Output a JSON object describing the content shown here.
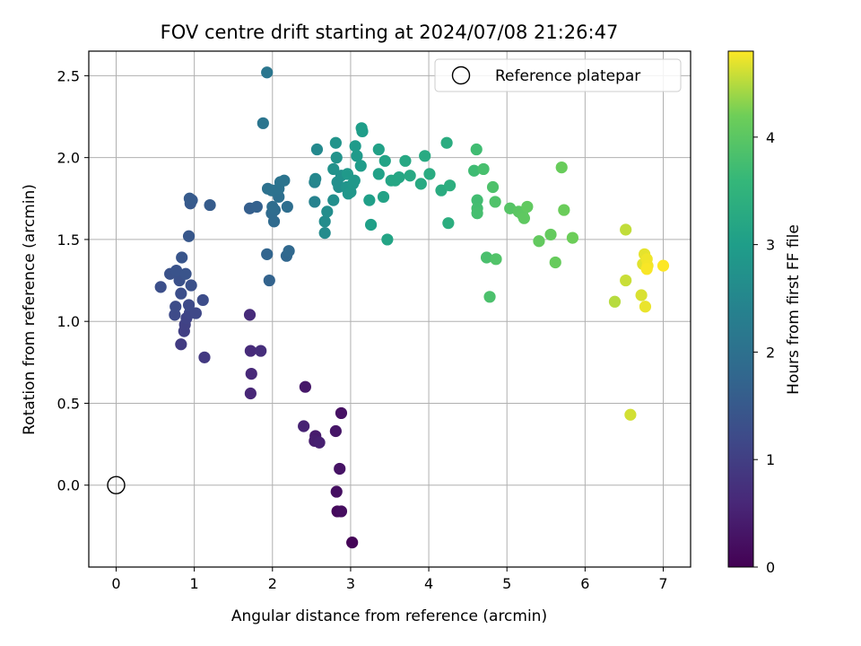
{
  "chart_data": {
    "type": "scatter",
    "title": "FOV centre drift starting at 2024/07/08 21:26:47",
    "xlabel": "Angular distance from reference (arcmin)",
    "ylabel": "Rotation from reference (arcmin)",
    "xlim": [
      -0.35,
      7.35
    ],
    "ylim": [
      -0.5,
      2.65
    ],
    "xticks": [
      0,
      1,
      2,
      3,
      4,
      5,
      6,
      7
    ],
    "xtick_labels": [
      "0",
      "1",
      "2",
      "3",
      "4",
      "5",
      "6",
      "7"
    ],
    "yticks": [
      0.0,
      0.5,
      1.0,
      1.5,
      2.0,
      2.5
    ],
    "ytick_labels": [
      "0.0",
      "0.5",
      "1.0",
      "1.5",
      "2.0",
      "2.5"
    ],
    "grid": true,
    "colormap": "viridis",
    "colorbar": {
      "label": "Hours from first FF file",
      "range": [
        0,
        4.8
      ],
      "ticks": [
        0,
        1,
        2,
        3,
        4
      ],
      "tick_labels": [
        "0",
        "1",
        "2",
        "3",
        "4"
      ]
    },
    "legend": {
      "placement": "top-right",
      "entries": [
        "Reference platepar"
      ]
    },
    "reference_point": {
      "x": 0,
      "y": 0
    },
    "points": [
      {
        "x": 3.02,
        "y": -0.35,
        "t": 0.05
      },
      {
        "x": 2.83,
        "y": -0.16,
        "t": 0.12
      },
      {
        "x": 2.88,
        "y": -0.16,
        "t": 0.18
      },
      {
        "x": 2.82,
        "y": -0.04,
        "t": 0.22
      },
      {
        "x": 2.86,
        "y": 0.1,
        "t": 0.28
      },
      {
        "x": 2.81,
        "y": 0.33,
        "t": 0.32
      },
      {
        "x": 2.88,
        "y": 0.44,
        "t": 0.25
      },
      {
        "x": 2.42,
        "y": 0.6,
        "t": 0.35
      },
      {
        "x": 2.55,
        "y": 0.3,
        "t": 0.4
      },
      {
        "x": 2.54,
        "y": 0.27,
        "t": 0.44
      },
      {
        "x": 2.6,
        "y": 0.26,
        "t": 0.48
      },
      {
        "x": 2.4,
        "y": 0.36,
        "t": 0.52
      },
      {
        "x": 1.72,
        "y": 0.56,
        "t": 0.58
      },
      {
        "x": 1.73,
        "y": 0.68,
        "t": 0.62
      },
      {
        "x": 1.72,
        "y": 0.82,
        "t": 0.66
      },
      {
        "x": 1.85,
        "y": 0.82,
        "t": 0.7
      },
      {
        "x": 1.71,
        "y": 1.04,
        "t": 0.66
      },
      {
        "x": 1.13,
        "y": 0.78,
        "t": 0.9
      },
      {
        "x": 0.83,
        "y": 0.86,
        "t": 0.95
      },
      {
        "x": 0.87,
        "y": 0.94,
        "t": 1.0
      },
      {
        "x": 0.88,
        "y": 0.98,
        "t": 1.04
      },
      {
        "x": 0.9,
        "y": 1.02,
        "t": 1.08
      },
      {
        "x": 0.94,
        "y": 1.05,
        "t": 1.12
      },
      {
        "x": 1.02,
        "y": 1.05,
        "t": 1.16
      },
      {
        "x": 0.93,
        "y": 1.1,
        "t": 1.2
      },
      {
        "x": 0.75,
        "y": 1.04,
        "t": 1.22
      },
      {
        "x": 0.76,
        "y": 1.09,
        "t": 1.24
      },
      {
        "x": 1.11,
        "y": 1.13,
        "t": 1.26
      },
      {
        "x": 0.83,
        "y": 1.17,
        "t": 1.28
      },
      {
        "x": 0.57,
        "y": 1.21,
        "t": 1.3
      },
      {
        "x": 0.96,
        "y": 1.22,
        "t": 1.32
      },
      {
        "x": 0.81,
        "y": 1.25,
        "t": 1.34
      },
      {
        "x": 0.69,
        "y": 1.29,
        "t": 1.36
      },
      {
        "x": 0.77,
        "y": 1.31,
        "t": 1.38
      },
      {
        "x": 0.89,
        "y": 1.29,
        "t": 1.4
      },
      {
        "x": 0.84,
        "y": 1.39,
        "t": 1.42
      },
      {
        "x": 0.93,
        "y": 1.52,
        "t": 1.46
      },
      {
        "x": 0.95,
        "y": 1.72,
        "t": 1.5
      },
      {
        "x": 0.97,
        "y": 1.74,
        "t": 1.52
      },
      {
        "x": 0.94,
        "y": 1.75,
        "t": 1.54
      },
      {
        "x": 1.2,
        "y": 1.71,
        "t": 1.56
      },
      {
        "x": 1.71,
        "y": 1.69,
        "t": 1.62
      },
      {
        "x": 1.8,
        "y": 1.7,
        "t": 1.66
      },
      {
        "x": 1.96,
        "y": 1.25,
        "t": 1.7
      },
      {
        "x": 1.93,
        "y": 1.41,
        "t": 1.74
      },
      {
        "x": 2.18,
        "y": 1.4,
        "t": 1.78
      },
      {
        "x": 2.21,
        "y": 1.43,
        "t": 1.82
      },
      {
        "x": 2.02,
        "y": 1.61,
        "t": 1.86
      },
      {
        "x": 1.99,
        "y": 1.66,
        "t": 1.88
      },
      {
        "x": 2.03,
        "y": 1.68,
        "t": 1.9
      },
      {
        "x": 2.0,
        "y": 1.7,
        "t": 1.92
      },
      {
        "x": 2.19,
        "y": 1.7,
        "t": 1.94
      },
      {
        "x": 2.08,
        "y": 1.76,
        "t": 1.96
      },
      {
        "x": 2.05,
        "y": 1.79,
        "t": 1.98
      },
      {
        "x": 1.94,
        "y": 1.81,
        "t": 2.0
      },
      {
        "x": 1.99,
        "y": 1.8,
        "t": 2.02
      },
      {
        "x": 2.08,
        "y": 1.81,
        "t": 2.04
      },
      {
        "x": 2.1,
        "y": 1.85,
        "t": 2.06
      },
      {
        "x": 2.15,
        "y": 1.86,
        "t": 2.08
      },
      {
        "x": 1.88,
        "y": 2.21,
        "t": 2.1
      },
      {
        "x": 1.93,
        "y": 2.52,
        "t": 2.12
      },
      {
        "x": 2.54,
        "y": 1.73,
        "t": 2.4
      },
      {
        "x": 2.54,
        "y": 1.85,
        "t": 2.45
      },
      {
        "x": 2.55,
        "y": 1.87,
        "t": 2.5
      },
      {
        "x": 2.57,
        "y": 2.05,
        "t": 2.55
      },
      {
        "x": 2.67,
        "y": 1.54,
        "t": 2.6
      },
      {
        "x": 2.67,
        "y": 1.61,
        "t": 2.62
      },
      {
        "x": 2.7,
        "y": 1.67,
        "t": 2.64
      },
      {
        "x": 2.78,
        "y": 1.74,
        "t": 2.66
      },
      {
        "x": 2.85,
        "y": 1.82,
        "t": 2.68
      },
      {
        "x": 2.83,
        "y": 1.85,
        "t": 2.7
      },
      {
        "x": 2.88,
        "y": 1.89,
        "t": 2.72
      },
      {
        "x": 2.78,
        "y": 1.93,
        "t": 2.74
      },
      {
        "x": 2.82,
        "y": 2.0,
        "t": 2.76
      },
      {
        "x": 2.81,
        "y": 2.09,
        "t": 2.78
      },
      {
        "x": 2.95,
        "y": 1.82,
        "t": 2.8
      },
      {
        "x": 2.97,
        "y": 1.78,
        "t": 2.82
      },
      {
        "x": 3.0,
        "y": 1.79,
        "t": 2.84
      },
      {
        "x": 3.03,
        "y": 1.84,
        "t": 2.86
      },
      {
        "x": 3.05,
        "y": 1.86,
        "t": 2.88
      },
      {
        "x": 2.96,
        "y": 1.9,
        "t": 2.9
      },
      {
        "x": 3.08,
        "y": 2.01,
        "t": 2.92
      },
      {
        "x": 3.06,
        "y": 2.07,
        "t": 2.94
      },
      {
        "x": 3.13,
        "y": 1.95,
        "t": 2.96
      },
      {
        "x": 3.15,
        "y": 2.16,
        "t": 2.98
      },
      {
        "x": 3.14,
        "y": 2.18,
        "t": 3.0
      },
      {
        "x": 3.24,
        "y": 1.74,
        "t": 3.02
      },
      {
        "x": 3.26,
        "y": 1.59,
        "t": 3.04
      },
      {
        "x": 3.36,
        "y": 1.9,
        "t": 3.06
      },
      {
        "x": 3.36,
        "y": 2.05,
        "t": 3.08
      },
      {
        "x": 3.42,
        "y": 1.76,
        "t": 3.1
      },
      {
        "x": 3.44,
        "y": 1.98,
        "t": 3.12
      },
      {
        "x": 3.47,
        "y": 1.5,
        "t": 3.14
      },
      {
        "x": 3.52,
        "y": 1.86,
        "t": 3.16
      },
      {
        "x": 3.57,
        "y": 1.86,
        "t": 3.18
      },
      {
        "x": 3.62,
        "y": 1.88,
        "t": 3.2
      },
      {
        "x": 3.7,
        "y": 1.98,
        "t": 3.22
      },
      {
        "x": 3.76,
        "y": 1.89,
        "t": 3.24
      },
      {
        "x": 3.9,
        "y": 1.84,
        "t": 3.26
      },
      {
        "x": 3.95,
        "y": 2.01,
        "t": 3.28
      },
      {
        "x": 4.01,
        "y": 1.9,
        "t": 3.3
      },
      {
        "x": 4.16,
        "y": 1.8,
        "t": 3.32
      },
      {
        "x": 4.23,
        "y": 2.09,
        "t": 3.34
      },
      {
        "x": 4.25,
        "y": 1.6,
        "t": 3.36
      },
      {
        "x": 4.27,
        "y": 1.83,
        "t": 3.38
      },
      {
        "x": 4.58,
        "y": 1.92,
        "t": 3.7
      },
      {
        "x": 4.61,
        "y": 2.05,
        "t": 3.72
      },
      {
        "x": 4.62,
        "y": 1.74,
        "t": 3.74
      },
      {
        "x": 4.62,
        "y": 1.69,
        "t": 3.76
      },
      {
        "x": 4.62,
        "y": 1.66,
        "t": 3.78
      },
      {
        "x": 4.7,
        "y": 1.93,
        "t": 3.8
      },
      {
        "x": 4.74,
        "y": 1.39,
        "t": 3.82
      },
      {
        "x": 4.78,
        "y": 1.15,
        "t": 3.84
      },
      {
        "x": 4.82,
        "y": 1.82,
        "t": 3.86
      },
      {
        "x": 4.85,
        "y": 1.73,
        "t": 3.88
      },
      {
        "x": 4.86,
        "y": 1.38,
        "t": 3.9
      },
      {
        "x": 5.04,
        "y": 1.69,
        "t": 3.95
      },
      {
        "x": 5.15,
        "y": 1.67,
        "t": 4.0
      },
      {
        "x": 5.2,
        "y": 1.65,
        "t": 4.02
      },
      {
        "x": 5.22,
        "y": 1.63,
        "t": 4.04
      },
      {
        "x": 5.26,
        "y": 1.7,
        "t": 4.06
      },
      {
        "x": 5.41,
        "y": 1.49,
        "t": 4.08
      },
      {
        "x": 5.56,
        "y": 1.53,
        "t": 4.1
      },
      {
        "x": 5.62,
        "y": 1.36,
        "t": 4.12
      },
      {
        "x": 5.7,
        "y": 1.94,
        "t": 4.14
      },
      {
        "x": 5.73,
        "y": 1.68,
        "t": 4.16
      },
      {
        "x": 5.84,
        "y": 1.51,
        "t": 4.18
      },
      {
        "x": 6.38,
        "y": 1.12,
        "t": 4.5
      },
      {
        "x": 6.52,
        "y": 1.56,
        "t": 4.55
      },
      {
        "x": 6.52,
        "y": 1.25,
        "t": 4.58
      },
      {
        "x": 6.58,
        "y": 0.43,
        "t": 4.62
      },
      {
        "x": 6.72,
        "y": 1.16,
        "t": 4.65
      },
      {
        "x": 6.74,
        "y": 1.35,
        "t": 4.68
      },
      {
        "x": 6.76,
        "y": 1.41,
        "t": 4.7
      },
      {
        "x": 6.77,
        "y": 1.09,
        "t": 4.72
      },
      {
        "x": 6.79,
        "y": 1.38,
        "t": 4.74
      },
      {
        "x": 6.8,
        "y": 1.34,
        "t": 4.76
      },
      {
        "x": 6.79,
        "y": 1.32,
        "t": 4.78
      },
      {
        "x": 7.0,
        "y": 1.34,
        "t": 4.8
      }
    ]
  }
}
